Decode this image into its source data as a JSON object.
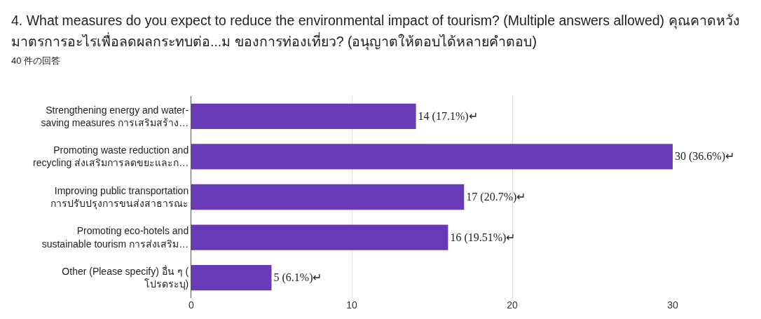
{
  "chart_data": {
    "type": "bar",
    "orientation": "horizontal",
    "title": "4. What measures do you expect to reduce the environmental impact of tourism? (Multiple answers allowed)  คุณคาดหวังมาตรการอะไรเพื่อลดผลกระทบต่อ...ม ของการท่องเที่ยว? (อนุญาตให้ตอบได้หลายคำตอบ)",
    "subtitle": "40 件の回答",
    "categories": [
      "Strengthening energy and water-saving measures การเสริมสร้าง…",
      "Promoting waste reduction and recycling ส่งเสริมการลดขยะและก…",
      "Improving public transportation การปรับปรุงการขนส่งสาธารณะ",
      "Promoting eco-hotels and sustainable tourism การส่งเสริม…",
      "Other (Please specify) อื่น ๆ (โปรดระบุ)"
    ],
    "values": [
      14,
      30,
      17,
      16,
      5
    ],
    "value_labels": [
      "14 (17.1%)↵",
      "30 (36.6%)↵",
      "17 (20.7%)↵",
      "16 (19.51%)↵",
      "5 (6.1%)↵"
    ],
    "color": "#673ab7",
    "xlim": [
      0,
      30
    ],
    "xticks": [
      0,
      10,
      20,
      30
    ],
    "grid": "x"
  }
}
